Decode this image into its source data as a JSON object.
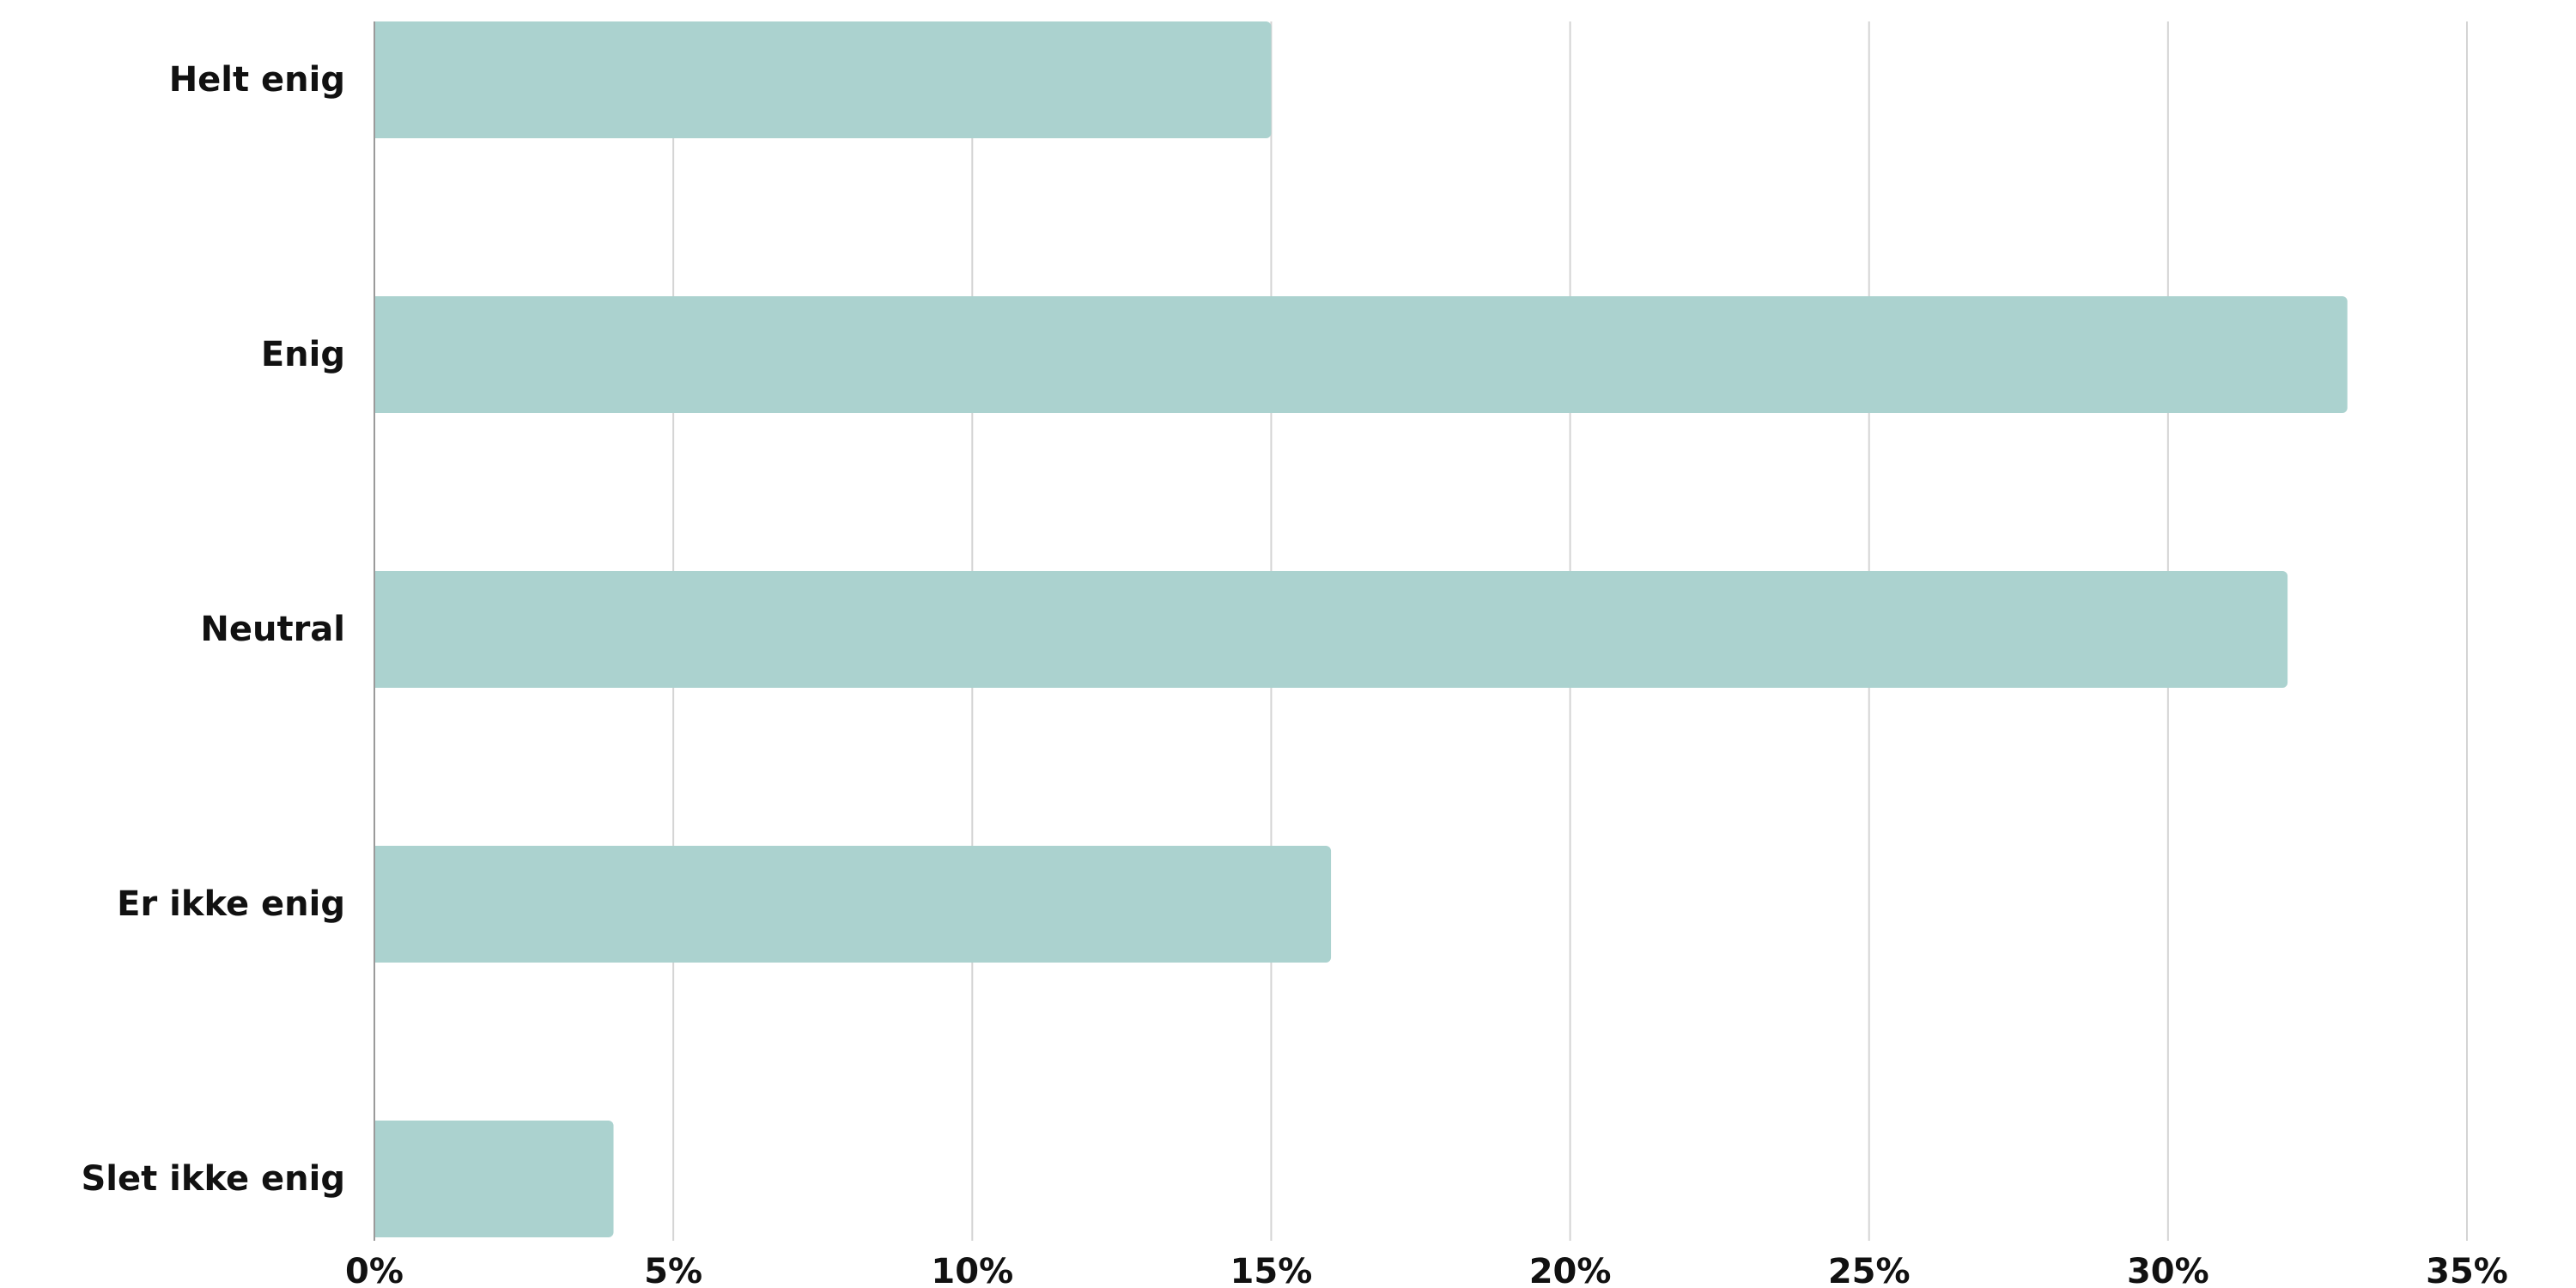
{
  "chart_data": {
    "type": "bar",
    "orientation": "horizontal",
    "categories": [
      "Helt enig",
      "Enig",
      "Neutral",
      "Er ikke enig",
      "Slet ikke enig"
    ],
    "values": [
      15,
      33,
      32,
      16,
      4
    ],
    "unit": "%",
    "xlim": [
      0,
      35
    ],
    "xticks": [
      0,
      5,
      10,
      15,
      20,
      25,
      30,
      35
    ],
    "xtick_labels": [
      "0%",
      "5%",
      "10%",
      "15%",
      "20%",
      "25%",
      "30%",
      "35%"
    ],
    "title": "",
    "xlabel": "",
    "ylabel": "",
    "grid": "vertical",
    "legend": "none",
    "colors": {
      "bar": "#abd2cf",
      "grid": "#d4d4d4",
      "axis": "#9a9a9a",
      "text": "#111111"
    }
  }
}
